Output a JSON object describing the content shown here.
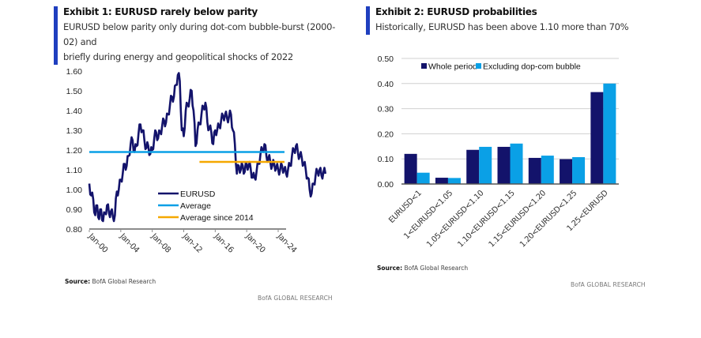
{
  "exhibit1": {
    "title": "Exhibit 1: EURUSD rarely below parity",
    "subtitle_line1": "EURUSD below parity only during dot-com bubble-burst (2000-02) and",
    "subtitle_line2": "briefly during energy and geopolitical shocks of 2022",
    "source_label": "Source:",
    "source_text": "BofA Global Research",
    "brand": "BofA GLOBAL RESEARCH"
  },
  "exhibit2": {
    "title": "Exhibit 2: EURUSD probabilities",
    "subtitle": "Historically, EURUSD has been above 1.10 more than 70%",
    "source_label": "Source:",
    "source_text": "BofA Global Research",
    "brand": "BofA GLOBAL RESEARCH"
  },
  "colors": {
    "accent_bar": "#1f3fbf",
    "navy": "#13136b",
    "sky": "#0aa0e6",
    "orange": "#f5a800",
    "axis": "#8c8c8c",
    "grid": "#d0d0d0"
  },
  "chart_data": [
    {
      "type": "line",
      "title": "Exhibit 1: EURUSD rarely below parity",
      "xlabel": "",
      "ylabel": "",
      "ylim": [
        0.8,
        1.6
      ],
      "yticks": [
        "1.60",
        "1.50",
        "1.40",
        "1.30",
        "1.20",
        "1.10",
        "1.00",
        "0.90",
        "0.80"
      ],
      "ytick_values": [
        1.6,
        1.5,
        1.4,
        1.3,
        1.2,
        1.1,
        1.0,
        0.9,
        0.8
      ],
      "xlim": [
        2000.0,
        2024.8
      ],
      "xticks": [
        "Jan-00",
        "Jan-04",
        "Jan-08",
        "Jan-12",
        "Jan-16",
        "Jan-20",
        "Jan-24"
      ],
      "xtick_values": [
        2000,
        2004,
        2008,
        2012,
        2016,
        2020,
        2024
      ],
      "grid": false,
      "legend": "bottom-center",
      "series": [
        {
          "name": "EURUSD",
          "x_start": 2000.0,
          "x_step_years": 0.25,
          "values": [
            1.03,
            0.97,
            0.95,
            0.87,
            0.92,
            0.85,
            0.9,
            0.84,
            0.88,
            0.92,
            0.88,
            0.89,
            0.86,
            0.87,
            0.99,
            1.0,
            1.05,
            1.08,
            1.13,
            1.12,
            1.17,
            1.23,
            1.25,
            1.19,
            1.22,
            1.28,
            1.33,
            1.3,
            1.25,
            1.21,
            1.22,
            1.18,
            1.2,
            1.26,
            1.29,
            1.26,
            1.29,
            1.32,
            1.35,
            1.34,
            1.38,
            1.43,
            1.47,
            1.47,
            1.53,
            1.58,
            1.55,
            1.3,
            1.27,
            1.4,
            1.43,
            1.46,
            1.5,
            1.4,
            1.22,
            1.3,
            1.33,
            1.38,
            1.42,
            1.44,
            1.34,
            1.31,
            1.29,
            1.23,
            1.3,
            1.3,
            1.32,
            1.35,
            1.37,
            1.38,
            1.36,
            1.37,
            1.38,
            1.3,
            1.23,
            1.08,
            1.12,
            1.1,
            1.12,
            1.09,
            1.13,
            1.12,
            1.11,
            1.06,
            1.06,
            1.09,
            1.13,
            1.18,
            1.2,
            1.23,
            1.17,
            1.16,
            1.14,
            1.12,
            1.13,
            1.11,
            1.1,
            1.1,
            1.12,
            1.1,
            1.08,
            1.1,
            1.12,
            1.17,
            1.2,
            1.22,
            1.19,
            1.17,
            1.16,
            1.13,
            1.1,
            1.06,
            1.0,
            0.98,
            1.03,
            1.07,
            1.09,
            1.1,
            1.07,
            1.09,
            1.08
          ]
        },
        {
          "name": "Average",
          "x_range": [
            2000.0,
            2024.8
          ],
          "value": 1.19
        },
        {
          "name": "Average since 2014",
          "x_range": [
            2014.0,
            2024.8
          ],
          "value": 1.14
        }
      ]
    },
    {
      "type": "bar",
      "title": "Exhibit 2: EURUSD probabilities",
      "xlabel": "",
      "ylabel": "",
      "ylim": [
        0.0,
        0.5
      ],
      "yticks": [
        "0.50",
        "0.40",
        "0.30",
        "0.20",
        "0.10",
        "0.00"
      ],
      "ytick_values": [
        0.5,
        0.4,
        0.3,
        0.2,
        0.1,
        0.0
      ],
      "grid": true,
      "legend": "top",
      "categories": [
        "EURUSD<1",
        "1<EURUSD<1.05",
        "1.05<EURUSD<1.10",
        "1.10<EURUSD<1.15",
        "1.15<EURUSD<1.20",
        "1.20<EURUSD<1.25",
        "1.25<EURUSD"
      ],
      "series": [
        {
          "name": "Whole period",
          "values": [
            0.12,
            0.025,
            0.136,
            0.148,
            0.104,
            0.099,
            0.366
          ]
        },
        {
          "name": "Excluding dop-com bubble",
          "values": [
            0.045,
            0.024,
            0.148,
            0.161,
            0.113,
            0.107,
            0.4
          ]
        }
      ]
    }
  ]
}
